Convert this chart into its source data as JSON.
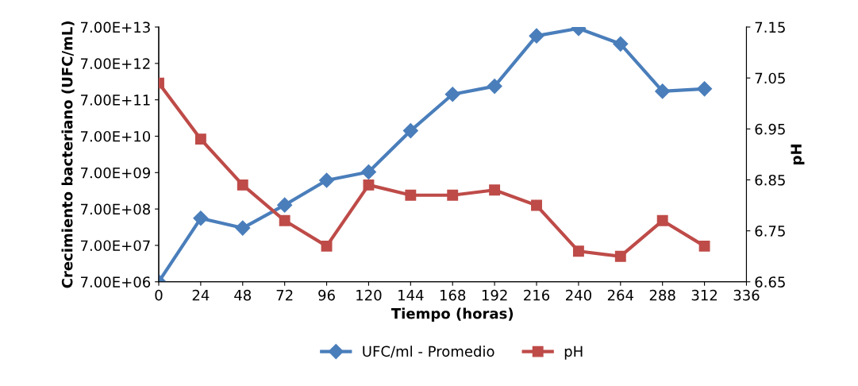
{
  "chart_data": {
    "type": "line",
    "xlabel": "Tiempo (horas)",
    "ylabel": "Crecimiento bacteriano (UFC/mL)",
    "y2label": "pH",
    "x": [
      0,
      24,
      48,
      72,
      96,
      120,
      144,
      168,
      192,
      216,
      240,
      264,
      288,
      312
    ],
    "xlim": [
      0,
      336
    ],
    "xticks": [
      0,
      24,
      48,
      72,
      96,
      120,
      144,
      168,
      192,
      216,
      240,
      264,
      288,
      312,
      336
    ],
    "log": "y",
    "ylim": [
      7000000,
      70000000000000
    ],
    "yticks": [
      {
        "value": 7000000,
        "label": "7.00E+06"
      },
      {
        "value": 70000000,
        "label": "7.00E+07"
      },
      {
        "value": 700000000,
        "label": "7.00E+08"
      },
      {
        "value": 7000000000,
        "label": "7.00E+09"
      },
      {
        "value": 70000000000,
        "label": "7.00E+10"
      },
      {
        "value": 700000000000,
        "label": "7.00E+11"
      },
      {
        "value": 7000000000000,
        "label": "7.00E+12"
      },
      {
        "value": 70000000000000,
        "label": "7.00E+13"
      }
    ],
    "y2lim": [
      6.65,
      7.15
    ],
    "y2ticks": [
      {
        "value": 6.65,
        "label": "6.65"
      },
      {
        "value": 6.75,
        "label": "6.75"
      },
      {
        "value": 6.85,
        "label": "6.85"
      },
      {
        "value": 6.95,
        "label": "6.95"
      },
      {
        "value": 7.05,
        "label": "7.05"
      },
      {
        "value": 7.15,
        "label": "7.15"
      }
    ],
    "series": [
      {
        "name": "UFC/ml - Promedio",
        "color": "#4a7ebb",
        "marker": "diamond",
        "values": [
          7000000,
          390000000,
          210000000,
          900000000,
          4300000000,
          7300000000,
          99000000000,
          990000000000,
          1650000000000,
          40000000000000,
          64000000000000,
          24000000000000,
          1200000000000,
          1400000000000
        ]
      },
      {
        "name": "pH",
        "color": "#be4b48",
        "marker": "square",
        "axis": "y2",
        "values": [
          7.04,
          6.93,
          6.84,
          6.77,
          6.72,
          6.84,
          6.82,
          6.82,
          6.83,
          6.8,
          6.71,
          6.7,
          6.77,
          6.72
        ]
      }
    ],
    "legend": "bottom",
    "grid": false
  }
}
